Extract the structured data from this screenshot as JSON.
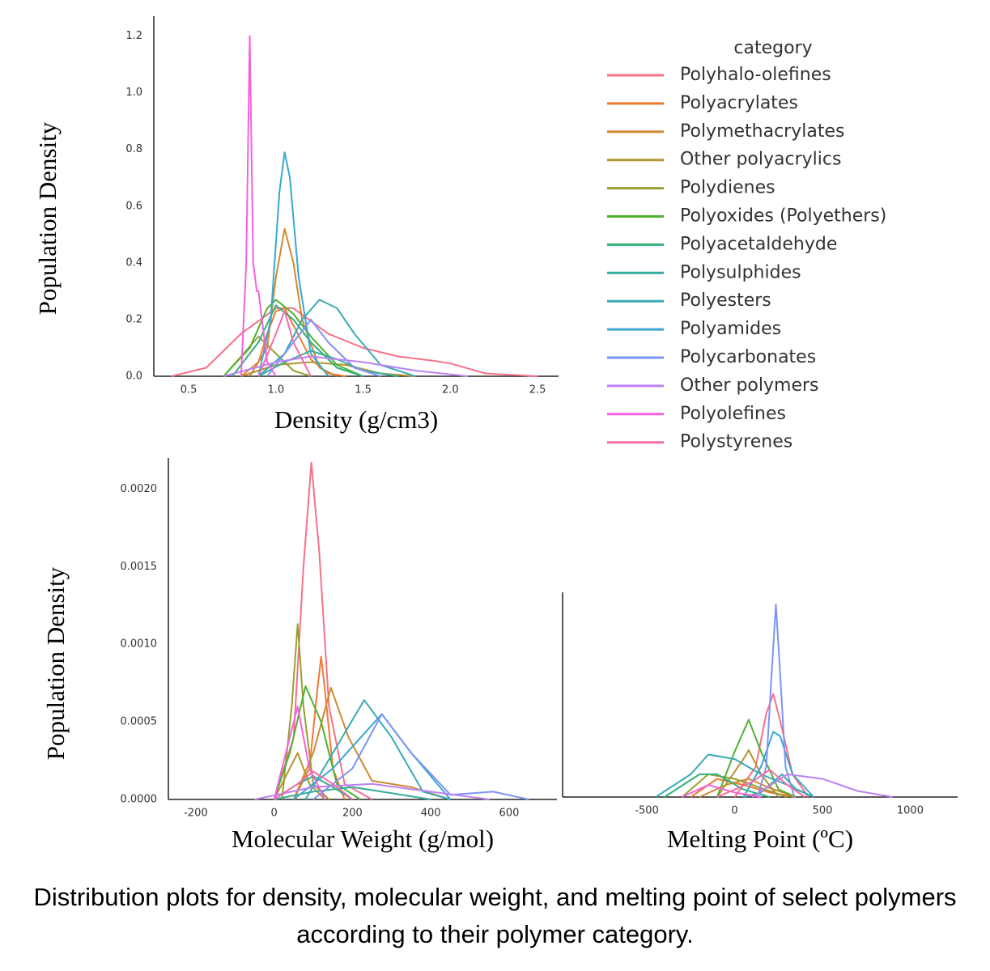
{
  "chart_data": [
    {
      "type": "line",
      "ylabel": "Population Density",
      "xlabel": "Density (g/cm3)",
      "legend_title": "category",
      "xlim": [
        0.3,
        2.62
      ],
      "ylim": [
        0,
        1.27
      ],
      "xticks": [
        0.5,
        {
          "value": 1.0,
          "label": "1.0"
        },
        1.5,
        {
          "value": 2.0,
          "label": "2.0"
        },
        2.5
      ],
      "yticks": [
        {
          "value": 0,
          "label": "0.0"
        },
        0.2,
        0.4,
        0.6,
        0.8,
        {
          "value": 1.0,
          "label": "1.0"
        },
        1.2
      ],
      "series": [
        {
          "name": "Polyhalo-olefines",
          "color": "#f77189",
          "x": [
            0.4,
            0.6,
            0.8,
            1.0,
            1.1,
            1.3,
            1.5,
            1.7,
            1.9,
            2.0,
            2.2,
            2.5
          ],
          "values": [
            0,
            0.03,
            0.15,
            0.24,
            0.24,
            0.15,
            0.1,
            0.07,
            0.055,
            0.045,
            0.01,
            0
          ]
        },
        {
          "name": "Polyacrylates",
          "color": "#f37932",
          "x": [
            0.8,
            0.9,
            0.95,
            1.0,
            1.05,
            1.1,
            1.2,
            1.3,
            1.4
          ],
          "values": [
            0,
            0.05,
            0.15,
            0.23,
            0.24,
            0.18,
            0.06,
            0.01,
            0
          ]
        },
        {
          "name": "Polymethacrylates",
          "color": "#cf8a31",
          "x": [
            0.85,
            0.95,
            1.0,
            1.05,
            1.1,
            1.15,
            1.25,
            1.35
          ],
          "values": [
            0,
            0.1,
            0.35,
            0.52,
            0.4,
            0.2,
            0.03,
            0
          ]
        },
        {
          "name": "Other polyacrylics",
          "color": "#b29631",
          "x": [
            0.8,
            1.0,
            1.2,
            1.4,
            1.6,
            1.8
          ],
          "values": [
            0,
            0.04,
            0.05,
            0.04,
            0.01,
            0
          ]
        },
        {
          "name": "Polydienes",
          "color": "#97a031",
          "x": [
            0.7,
            0.8,
            0.9,
            1.0,
            1.1,
            1.2
          ],
          "values": [
            0,
            0.07,
            0.14,
            0.08,
            0.02,
            0
          ]
        },
        {
          "name": "Polyoxides (Polyethers)",
          "color": "#50b131",
          "x": [
            0.7,
            0.85,
            0.95,
            1.0,
            1.1,
            1.2,
            1.35,
            1.5
          ],
          "values": [
            0,
            0.1,
            0.24,
            0.27,
            0.22,
            0.14,
            0.04,
            0
          ]
        },
        {
          "name": "Polyacetaldehyde",
          "color": "#33b07a",
          "x": [
            0.75,
            0.9,
            1.0,
            1.1,
            1.2,
            1.35,
            1.5
          ],
          "values": [
            0,
            0.12,
            0.25,
            0.2,
            0.12,
            0.03,
            0
          ]
        },
        {
          "name": "Polysulphides",
          "color": "#35ad9c",
          "x": [
            0.9,
            1.05,
            1.2,
            1.35,
            1.5,
            1.7
          ],
          "values": [
            0,
            0.05,
            0.09,
            0.06,
            0.02,
            0
          ]
        },
        {
          "name": "Polyesters",
          "color": "#37abb4",
          "x": [
            0.9,
            1.05,
            1.15,
            1.25,
            1.35,
            1.45,
            1.6,
            1.8
          ],
          "values": [
            0,
            0.08,
            0.2,
            0.27,
            0.24,
            0.15,
            0.04,
            0
          ]
        },
        {
          "name": "Polyamides",
          "color": "#3aa7d0",
          "x": [
            0.9,
            0.97,
            1.02,
            1.05,
            1.08,
            1.13,
            1.2,
            1.3
          ],
          "values": [
            0,
            0.2,
            0.65,
            0.79,
            0.7,
            0.35,
            0.08,
            0
          ]
        },
        {
          "name": "Polycarbonates",
          "color": "#7e94f4",
          "x": [
            0.95,
            1.1,
            1.2,
            1.3,
            1.45,
            1.6
          ],
          "values": [
            0,
            0.12,
            0.2,
            0.12,
            0.03,
            0
          ]
        },
        {
          "name": "Other polymers",
          "color": "#bb82f4",
          "x": [
            0.7,
            1.0,
            1.2,
            1.5,
            1.8,
            2.1
          ],
          "values": [
            0,
            0.05,
            0.07,
            0.05,
            0.02,
            0
          ]
        },
        {
          "name": "Polyolefines",
          "color": "#f561dd",
          "x": [
            0.8,
            0.83,
            0.85,
            0.87,
            0.89,
            0.9,
            0.92,
            0.95,
            1.0
          ],
          "values": [
            0,
            0.4,
            1.2,
            0.4,
            0.3,
            0.3,
            0.2,
            0.05,
            0
          ]
        },
        {
          "name": "Polystyrenes",
          "color": "#f66bad",
          "x": [
            0.9,
            1.0,
            1.05,
            1.1,
            1.2
          ],
          "values": [
            0,
            0.15,
            0.23,
            0.12,
            0
          ]
        }
      ]
    },
    {
      "type": "line",
      "ylabel": "Population Density",
      "xlabel": "Molecular Weight (g/mol)",
      "xlim": [
        -270,
        722
      ],
      "ylim": [
        0,
        0.0022
      ],
      "xticks": [
        -200,
        0,
        200,
        400,
        600
      ],
      "yticks": [
        {
          "value": 0,
          "label": "0.0000"
        },
        {
          "value": 0.0005,
          "label": "0.0005"
        },
        {
          "value": 0.001,
          "label": "0.0010"
        },
        {
          "value": 0.0015,
          "label": "0.0015"
        },
        {
          "value": 0.002,
          "label": "0.0020"
        }
      ],
      "series": [
        {
          "color": "#f77189",
          "x": [
            0,
            50,
            75,
            95,
            115,
            140,
            180,
            250
          ],
          "values": [
            0,
            0.0004,
            0.0015,
            0.00217,
            0.0016,
            0.0006,
            0.0001,
            0
          ]
        },
        {
          "color": "#f37932",
          "x": [
            50,
            90,
            110,
            120,
            130,
            150,
            180
          ],
          "values": [
            0,
            0.0002,
            0.0007,
            0.00092,
            0.0007,
            0.0002,
            0
          ]
        },
        {
          "color": "#cf8a31",
          "x": [
            50,
            100,
            145,
            190,
            250,
            350,
            450
          ],
          "values": [
            0,
            0.0003,
            0.00072,
            0.0004,
            0.00012,
            8e-05,
            0
          ]
        },
        {
          "color": "#b29631",
          "x": [
            0,
            40,
            60,
            90,
            130
          ],
          "values": [
            0,
            0.0002,
            0.0003,
            0.0001,
            0
          ]
        },
        {
          "color": "#97a031",
          "x": [
            20,
            45,
            60,
            75,
            100,
            140
          ],
          "values": [
            0,
            0.0006,
            0.00113,
            0.0006,
            0.0001,
            0
          ]
        },
        {
          "color": "#50b131",
          "x": [
            0,
            40,
            80,
            120,
            160,
            220
          ],
          "values": [
            0,
            0.0003,
            0.00073,
            0.0005,
            0.0001,
            0
          ]
        },
        {
          "color": "#33b07a",
          "x": [
            0,
            60,
            100,
            150,
            200
          ],
          "values": [
            0,
            0.0001,
            0.00015,
            8e-05,
            0
          ]
        },
        {
          "color": "#35ad9c",
          "x": [
            0,
            100,
            200,
            300,
            400
          ],
          "values": [
            0,
            5e-05,
            8e-05,
            4e-05,
            0
          ]
        },
        {
          "color": "#37abb4",
          "x": [
            80,
            150,
            230,
            300,
            380,
            450
          ],
          "values": [
            0,
            0.0003,
            0.00064,
            0.0004,
            5e-05,
            0
          ]
        },
        {
          "color": "#3aa7d0",
          "x": [
            50,
            150,
            275,
            350,
            450
          ],
          "values": [
            0,
            0.0002,
            0.00055,
            0.0003,
            0
          ]
        },
        {
          "color": "#7e94f4",
          "x": [
            100,
            200,
            275,
            350,
            450,
            560,
            650
          ],
          "values": [
            0,
            0.0002,
            0.00055,
            0.0003,
            3e-05,
            5e-05,
            0
          ]
        },
        {
          "color": "#bb82f4",
          "x": [
            -50,
            100,
            250,
            400,
            550
          ],
          "values": [
            0,
            8e-05,
            0.0001,
            5e-05,
            0
          ]
        },
        {
          "color": "#f561dd",
          "x": [
            0,
            30,
            60,
            90,
            130
          ],
          "values": [
            0,
            0.0003,
            0.0006,
            0.0002,
            0
          ]
        },
        {
          "color": "#f66bad",
          "x": [
            0,
            60,
            100,
            150,
            200
          ],
          "values": [
            0,
            0.0001,
            0.00018,
            0.0001,
            0
          ]
        }
      ]
    },
    {
      "type": "line",
      "xlabel": "Melting Point (ºC)",
      "xlim": [
        -980,
        1270
      ],
      "ylim": [
        0,
        0.0135
      ],
      "xticks": [
        -500,
        0,
        500,
        1000
      ],
      "series": [
        {
          "color": "#f77189",
          "x": [
            0,
            120,
            180,
            220,
            260,
            330,
            420
          ],
          "values": [
            0,
            0.002,
            0.0055,
            0.0068,
            0.005,
            0.0015,
            0
          ]
        },
        {
          "color": "#f37932",
          "x": [
            -250,
            -100,
            50,
            200,
            350
          ],
          "values": [
            0,
            0.0012,
            0.0008,
            0.0003,
            0
          ]
        },
        {
          "color": "#cf8a31",
          "x": [
            -200,
            -50,
            80,
            200,
            350
          ],
          "values": [
            0,
            0.0008,
            0.0012,
            0.0006,
            0
          ]
        },
        {
          "color": "#b29631",
          "x": [
            -100,
            50,
            80,
            150,
            250
          ],
          "values": [
            0,
            0.0025,
            0.0031,
            0.0015,
            0
          ]
        },
        {
          "color": "#97a031",
          "x": [
            -300,
            -150,
            0,
            150,
            300
          ],
          "values": [
            0,
            0.0015,
            0.0012,
            0.0006,
            0
          ]
        },
        {
          "color": "#50b131",
          "x": [
            -100,
            0,
            80,
            150,
            250,
            350
          ],
          "values": [
            0,
            0.003,
            0.0051,
            0.003,
            0.0005,
            0
          ]
        },
        {
          "color": "#33b07a",
          "x": [
            -400,
            -200,
            -100,
            50,
            200
          ],
          "values": [
            0,
            0.0015,
            0.0015,
            0.0005,
            0
          ]
        },
        {
          "color": "#35ad9c",
          "x": [
            50,
            150,
            270,
            350,
            450
          ],
          "values": [
            0,
            0.0003,
            0.0015,
            0.0005,
            0
          ]
        },
        {
          "color": "#37abb4",
          "x": [
            -450,
            -250,
            -150,
            0,
            150,
            300,
            450
          ],
          "values": [
            0,
            0.0015,
            0.0028,
            0.0025,
            0.0015,
            0.0008,
            0
          ]
        },
        {
          "color": "#3aa7d0",
          "x": [
            50,
            150,
            220,
            260,
            330,
            450
          ],
          "values": [
            0,
            0.002,
            0.0043,
            0.004,
            0.0015,
            0
          ]
        },
        {
          "color": "#7e94f4",
          "x": [
            130,
            180,
            210,
            235,
            260,
            290,
            340
          ],
          "values": [
            0,
            0.002,
            0.008,
            0.0127,
            0.008,
            0.002,
            0
          ]
        },
        {
          "color": "#bb82f4",
          "x": [
            100,
            300,
            500,
            700,
            900
          ],
          "values": [
            0,
            0.0015,
            0.0012,
            0.0004,
            0
          ]
        },
        {
          "color": "#f561dd",
          "x": [
            -300,
            -150,
            0,
            150
          ],
          "values": [
            0,
            0.0008,
            0.0003,
            0
          ]
        },
        {
          "color": "#f66bad",
          "x": [
            -100,
            100,
            200,
            300,
            400
          ],
          "values": [
            0,
            0.001,
            0.0018,
            0.0008,
            0
          ]
        }
      ]
    }
  ],
  "caption": "Distribution plots for density, molecular weight, and melting point of select polymers according to their polymer category."
}
